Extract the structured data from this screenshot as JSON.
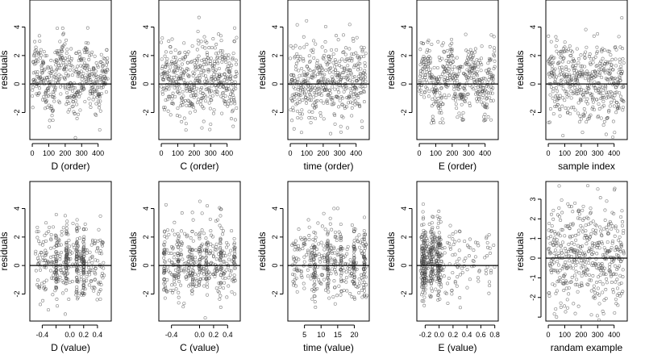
{
  "chart_data": [
    {
      "type": "scatter",
      "xlabel": "D (order)",
      "ylabel": "residuals",
      "xlim": [
        -15,
        480
      ],
      "ylim": [
        -3.9,
        5.9
      ],
      "xticks": [
        0,
        100,
        200,
        300,
        400
      ],
      "yticks": [
        -2,
        0,
        2,
        4
      ],
      "yticklabels": [
        "-2",
        "0",
        "2",
        "4"
      ],
      "reference_line_y": 0,
      "x_kind": "index",
      "n": 460,
      "seed": 11,
      "pattern": "clustered-by-level",
      "summary": "residuals vs D ordering, mostly within -3..4"
    },
    {
      "type": "scatter",
      "xlabel": "C (order)",
      "ylabel": "residuals",
      "xlim": [
        -15,
        480
      ],
      "ylim": [
        -3.9,
        5.9
      ],
      "xticks": [
        0,
        100,
        200,
        300,
        400
      ],
      "yticks": [
        -2,
        0,
        2,
        4
      ],
      "yticklabels": [
        "-2",
        "0",
        "2",
        "4"
      ],
      "reference_line_y": 0,
      "x_kind": "index",
      "n": 460,
      "seed": 23,
      "pattern": "uniform-band",
      "summary": "residuals vs C ordering"
    },
    {
      "type": "scatter",
      "xlabel": "time (order)",
      "ylabel": "residuals",
      "xlim": [
        -15,
        480
      ],
      "ylim": [
        -3.9,
        5.9
      ],
      "xticks": [
        0,
        100,
        200,
        300,
        400
      ],
      "yticks": [
        -2,
        0,
        2,
        4
      ],
      "yticklabels": [
        "-2",
        "0",
        "2",
        "4"
      ],
      "reference_line_y": 0,
      "x_kind": "index",
      "n": 460,
      "seed": 37,
      "pattern": "uniform-band",
      "summary": "residuals vs time ordering"
    },
    {
      "type": "scatter",
      "xlabel": "E (order)",
      "ylabel": "residuals",
      "xlim": [
        -15,
        480
      ],
      "ylim": [
        -3.9,
        5.9
      ],
      "xticks": [
        0,
        100,
        200,
        300,
        400
      ],
      "yticks": [
        -2,
        0,
        2,
        4
      ],
      "yticklabels": [
        "-2",
        "0",
        "2",
        "4"
      ],
      "reference_line_y": 0,
      "x_kind": "index",
      "n": 460,
      "seed": 41,
      "pattern": "clustered-by-level",
      "summary": "residuals vs E ordering"
    },
    {
      "type": "scatter",
      "xlabel": "sample index",
      "ylabel": "residuals",
      "xlim": [
        -15,
        480
      ],
      "ylim": [
        -3.9,
        5.9
      ],
      "xticks": [
        0,
        100,
        200,
        300,
        400
      ],
      "yticks": [
        -2,
        0,
        2,
        4
      ],
      "yticklabels": [
        "-2",
        "0",
        "2",
        "4"
      ],
      "reference_line_y": 0,
      "x_kind": "index",
      "n": 460,
      "seed": 53,
      "pattern": "uniform-band",
      "summary": "residuals vs sample index"
    },
    {
      "type": "scatter",
      "xlabel": "D (value)",
      "ylabel": "residuals",
      "xlim": [
        -0.58,
        0.6
      ],
      "ylim": [
        -3.9,
        5.9
      ],
      "xticks": [
        -0.4,
        -0.2,
        0.0,
        0.2,
        0.4
      ],
      "xticklabels": [
        "-0.4",
        "",
        "0.0",
        "0.2",
        "0.4"
      ],
      "yticks": [
        -2,
        0,
        2,
        4
      ],
      "yticklabels": [
        "-2",
        "0",
        "2",
        "4"
      ],
      "reference_line_y": 0,
      "x_kind": "continuous",
      "x_range": [
        -0.5,
        0.5
      ],
      "n": 460,
      "seed": 61,
      "pattern": "vertical-streaks",
      "streak_x": [
        -0.2,
        -0.05,
        0.1,
        0.2
      ],
      "summary": "residuals vs D value"
    },
    {
      "type": "scatter",
      "xlabel": "C (value)",
      "ylabel": "residuals",
      "xlim": [
        -0.58,
        0.58
      ],
      "ylim": [
        -3.9,
        5.9
      ],
      "xticks": [
        -0.4,
        0.0,
        0.2,
        0.4
      ],
      "xticklabels": [
        "-0.4",
        "0.0",
        "0.2",
        "0.4"
      ],
      "yticks": [
        -2,
        0,
        2,
        4
      ],
      "yticklabels": [
        "-2",
        "0",
        "2",
        "4"
      ],
      "reference_line_y": 0,
      "x_kind": "continuous",
      "x_range": [
        -0.5,
        0.5
      ],
      "n": 460,
      "seed": 71,
      "pattern": "vertical-streaks",
      "streak_x": [
        -0.5,
        -0.3,
        -0.1,
        0.0,
        0.1,
        0.3,
        0.5
      ],
      "summary": "residuals vs C value"
    },
    {
      "type": "scatter",
      "xlabel": "time (value)",
      "ylabel": "residuals",
      "xlim": [
        0,
        24.5
      ],
      "ylim": [
        -3.9,
        5.9
      ],
      "xticks": [
        5,
        10,
        15,
        20
      ],
      "xticklabels": [
        "5",
        "10",
        "15",
        "20"
      ],
      "yticks": [
        -2,
        0,
        2,
        4
      ],
      "yticklabels": [
        "-2",
        "0",
        "2",
        "4"
      ],
      "reference_line_y": 0,
      "x_kind": "continuous",
      "x_range": [
        1,
        24
      ],
      "n": 460,
      "seed": 83,
      "pattern": "vertical-streaks",
      "streak_x": [
        8,
        12,
        16,
        20,
        23
      ],
      "summary": "residuals vs time value"
    },
    {
      "type": "scatter",
      "xlabel": "E (value)",
      "ylabel": "residuals",
      "xlim": [
        -0.32,
        0.85
      ],
      "ylim": [
        -3.9,
        5.9
      ],
      "xticks": [
        -0.2,
        0.0,
        0.2,
        0.4,
        0.6,
        0.8
      ],
      "xticklabels": [
        "-0.2",
        "0.0",
        "0.2",
        "0.4",
        "0.6",
        "0.8"
      ],
      "yticks": [
        -2,
        0,
        2,
        4
      ],
      "yticklabels": [
        "-2",
        "0",
        "2",
        "4"
      ],
      "reference_line_y": 0,
      "x_kind": "skewed",
      "x_range": [
        -0.25,
        0.8
      ],
      "n": 460,
      "seed": 97,
      "pattern": "dense-left",
      "streak_x": [
        -0.22,
        -0.1,
        0.0
      ],
      "summary": "residuals vs E value, right-skewed"
    },
    {
      "type": "scatter",
      "xlabel": "randam example",
      "ylabel": "residuals",
      "xlim": [
        -15,
        480
      ],
      "ylim": [
        -3.2,
        3.9
      ],
      "xticks": [
        0,
        100,
        200,
        300,
        400
      ],
      "yticks": [
        -3,
        -2,
        -1,
        0,
        1,
        2,
        3
      ],
      "yticklabels": [
        "",
        "-2",
        "-1",
        "0",
        "1",
        "2",
        "3"
      ],
      "reference_line_y": 0,
      "x_kind": "index",
      "n": 460,
      "seed": 109,
      "pattern": "uniform-band",
      "summary": "random reference example"
    }
  ]
}
